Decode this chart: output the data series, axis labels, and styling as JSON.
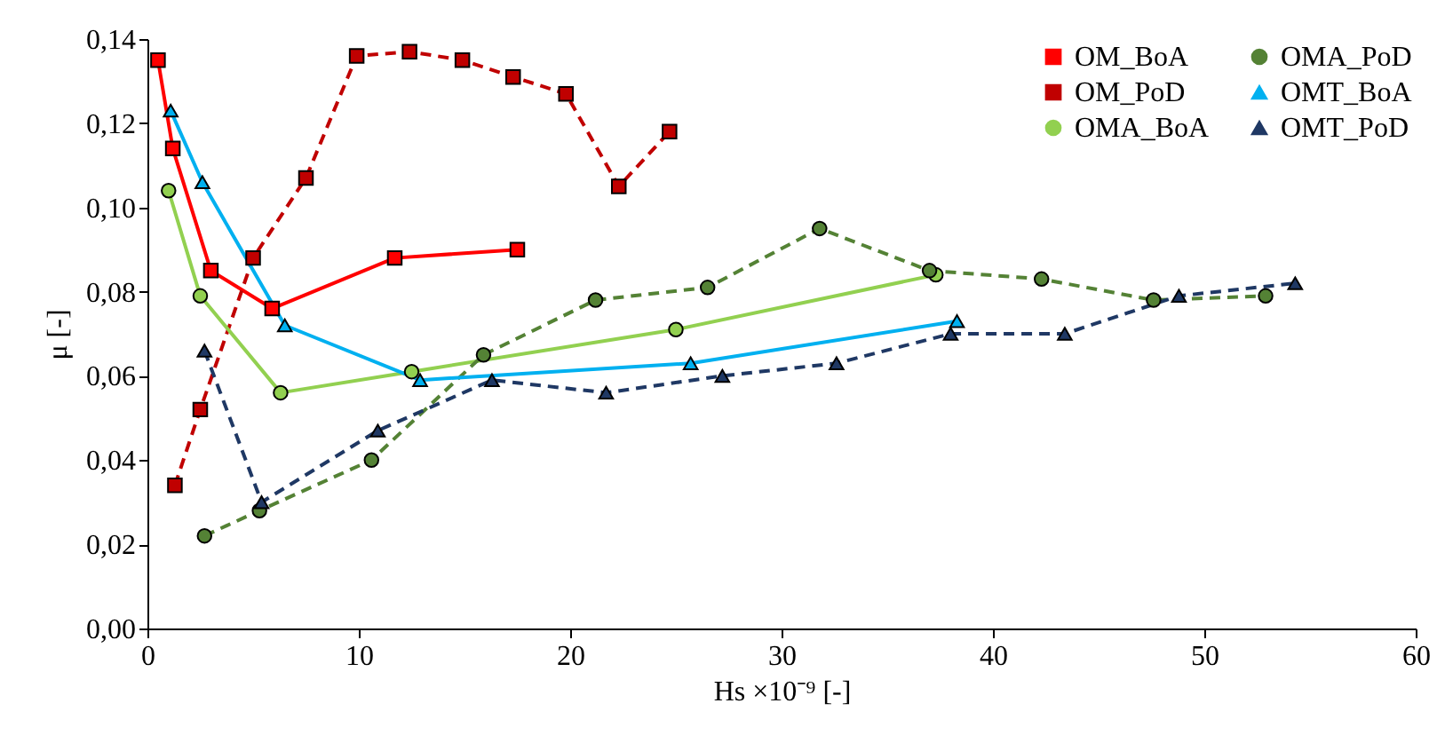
{
  "chart_data": {
    "type": "line",
    "xlabel": "Hs ×10⁻⁹ [-]",
    "ylabel": "μ [-]",
    "xlim": [
      0,
      60
    ],
    "xticks": [
      0,
      10,
      20,
      30,
      40,
      50,
      60
    ],
    "ylim": [
      0,
      0.14
    ],
    "yticks": [
      {
        "value": 0,
        "label": "0,00"
      },
      {
        "value": 0.02,
        "label": "0,02"
      },
      {
        "value": 0.04,
        "label": "0,04"
      },
      {
        "value": 0.06,
        "label": "0,06"
      },
      {
        "value": 0.08,
        "label": "0,08"
      },
      {
        "value": 0.1,
        "label": "0,10"
      },
      {
        "value": 0.12,
        "label": "0,12"
      },
      {
        "value": 0.14,
        "label": "0,14"
      }
    ],
    "legend": "top right",
    "grid": false,
    "series": [
      {
        "name": "OM_BoA",
        "color": "#ff0000",
        "marker": "square",
        "line_style": "solid",
        "x": [
          0.5,
          1.2,
          3.0,
          5.9,
          11.7,
          17.5
        ],
        "values": [
          0.135,
          0.114,
          0.085,
          0.076,
          0.088,
          0.09
        ]
      },
      {
        "name": "OM_PoD",
        "color": "#c00000",
        "marker": "square",
        "line_style": "dashed",
        "x": [
          1.3,
          2.5,
          5.0,
          7.5,
          9.9,
          12.4,
          14.9,
          17.3,
          19.8,
          22.3,
          24.7
        ],
        "values": [
          0.034,
          0.052,
          0.088,
          0.107,
          0.136,
          0.137,
          0.135,
          0.131,
          0.127,
          0.105,
          0.118
        ]
      },
      {
        "name": "OMA_BoA",
        "color": "#92d050",
        "marker": "circle",
        "line_style": "solid",
        "x": [
          1.0,
          2.5,
          6.3,
          12.5,
          25.0,
          37.3
        ],
        "values": [
          0.104,
          0.079,
          0.056,
          0.061,
          0.071,
          0.084
        ]
      },
      {
        "name": "OMA_PoD",
        "color": "#548235",
        "marker": "circle",
        "line_style": "dashed",
        "x": [
          2.7,
          5.3,
          10.6,
          15.9,
          21.2,
          26.5,
          31.8,
          37.0,
          42.3,
          47.6,
          52.9
        ],
        "values": [
          0.022,
          0.028,
          0.04,
          0.065,
          0.078,
          0.081,
          0.095,
          0.085,
          0.083,
          0.078,
          0.079
        ]
      },
      {
        "name": "OMT_BoA",
        "color": "#00b0f0",
        "marker": "triangle",
        "line_style": "solid",
        "x": [
          1.1,
          2.6,
          6.5,
          12.9,
          25.7,
          38.3
        ],
        "values": [
          0.123,
          0.106,
          0.072,
          0.059,
          0.063,
          0.073
        ]
      },
      {
        "name": "OMT_PoD",
        "color": "#1f3864",
        "marker": "triangle",
        "line_style": "dashed",
        "x": [
          2.7,
          5.4,
          10.9,
          16.3,
          21.7,
          27.2,
          32.6,
          38.0,
          43.4,
          48.8,
          54.3
        ],
        "values": [
          0.066,
          0.03,
          0.047,
          0.059,
          0.056,
          0.06,
          0.063,
          0.07,
          0.07,
          0.079,
          0.082
        ]
      }
    ]
  }
}
